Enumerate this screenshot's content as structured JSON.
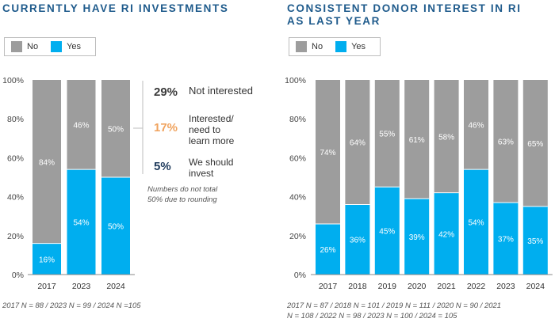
{
  "colors": {
    "no": "#9d9d9d",
    "yes": "#00aeef",
    "text_dark": "#3a3a3a",
    "orange": "#f0a35e",
    "navy": "#1f3b5c",
    "title": "#1f5b8c"
  },
  "legend": {
    "no": "No",
    "yes": "Yes"
  },
  "callouts": [
    {
      "pct": "29%",
      "label": "Not interested",
      "color": "#3a3a3a"
    },
    {
      "pct": "17%",
      "label": "Interested/ need to learn more",
      "color": "#f0a35e"
    },
    {
      "pct": "5%",
      "label": "We should invest",
      "color": "#1f3b5c"
    }
  ],
  "callout_note": [
    "Numbers do not total",
    "50% due to rounding"
  ],
  "chart_data": [
    {
      "type": "bar",
      "stacked": true,
      "title": "CURRENTLY HAVE RI INVESTMENTS",
      "categories": [
        "2017",
        "2023",
        "2024"
      ],
      "series": [
        {
          "name": "Yes",
          "values": [
            16,
            54,
            50
          ]
        },
        {
          "name": "No",
          "values": [
            84,
            46,
            50
          ]
        }
      ],
      "yticks": [
        "0%",
        "20%",
        "40%",
        "60%",
        "80%",
        "100%"
      ],
      "ylim": [
        0,
        100
      ],
      "footnote": [
        "2017 N = 88 / 2023 N = 99 / 2024 N =105"
      ]
    },
    {
      "type": "bar",
      "stacked": true,
      "title": "CONSISTENT DONOR INTEREST IN RI AS LAST YEAR",
      "categories": [
        "2017",
        "2018",
        "2019",
        "2020",
        "2021",
        "2022",
        "2023",
        "2024"
      ],
      "series": [
        {
          "name": "Yes",
          "values": [
            26,
            36,
            45,
            39,
            42,
            54,
            37,
            35
          ]
        },
        {
          "name": "No",
          "values": [
            74,
            64,
            55,
            61,
            58,
            46,
            63,
            65
          ]
        }
      ],
      "yticks": [
        "0%",
        "20%",
        "40%",
        "60%",
        "80%",
        "100%"
      ],
      "ylim": [
        0,
        100
      ],
      "footnote": [
        "2017 N = 87 / 2018 N = 101 / 2019 N = 111 / 2020 N = 90 / 2021",
        "N = 108 / 2022 N = 98 / 2023 N = 100 / 2024 = 105"
      ]
    }
  ]
}
